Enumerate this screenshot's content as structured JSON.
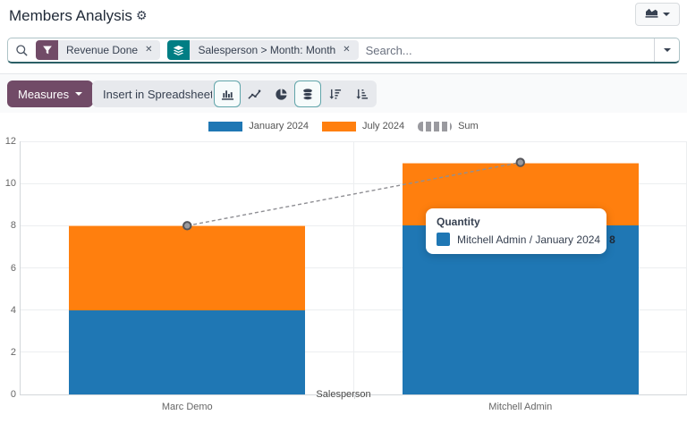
{
  "header": {
    "title": "Members Analysis"
  },
  "search": {
    "placeholder": "Search...",
    "facets": [
      {
        "kind": "filter",
        "icon": "filter-icon",
        "label": "Revenue Done"
      },
      {
        "kind": "groupby",
        "icon": "layers-icon",
        "label": "Salesperson > Month: Month"
      }
    ]
  },
  "toolbar": {
    "measures_label": "Measures",
    "insert_label": "Insert in Spreadsheet",
    "chart_type_buttons": [
      {
        "name": "bar-chart",
        "active": true
      },
      {
        "name": "line-chart",
        "active": false
      },
      {
        "name": "pie-chart",
        "active": false
      },
      {
        "name": "stacked",
        "active": true
      },
      {
        "name": "sort-desc",
        "active": false
      },
      {
        "name": "sort-asc",
        "active": false
      }
    ]
  },
  "tooltip": {
    "title": "Quantity",
    "row_label": "Mitchell Admin / January 2024",
    "row_value": "8",
    "swatch_color": "#1f77b4"
  },
  "colors": {
    "accent_purple": "#714B67",
    "accent_teal": "#017E84",
    "bar_blue": "#1f77b4",
    "bar_orange": "#ff7f0e",
    "sum_line_grey": "#8f8f94"
  },
  "chart_data": {
    "type": "bar",
    "stacked": true,
    "categories": [
      "Marc Demo",
      "Mitchell Admin"
    ],
    "series": [
      {
        "name": "January 2024",
        "type": "bar",
        "color": "#1f77b4",
        "values": [
          4,
          8
        ]
      },
      {
        "name": "July 2024",
        "type": "bar",
        "color": "#ff7f0e",
        "values": [
          4,
          3
        ]
      },
      {
        "name": "Sum",
        "type": "line",
        "color": "#8f8f94",
        "dashed": true,
        "values": [
          8,
          11
        ]
      }
    ],
    "xlabel": "Salesperson",
    "ylabel": "",
    "ylim": [
      0,
      12
    ],
    "yticks": [
      0,
      2,
      4,
      6,
      8,
      10,
      12
    ],
    "legend_position": "top",
    "grid": true
  }
}
